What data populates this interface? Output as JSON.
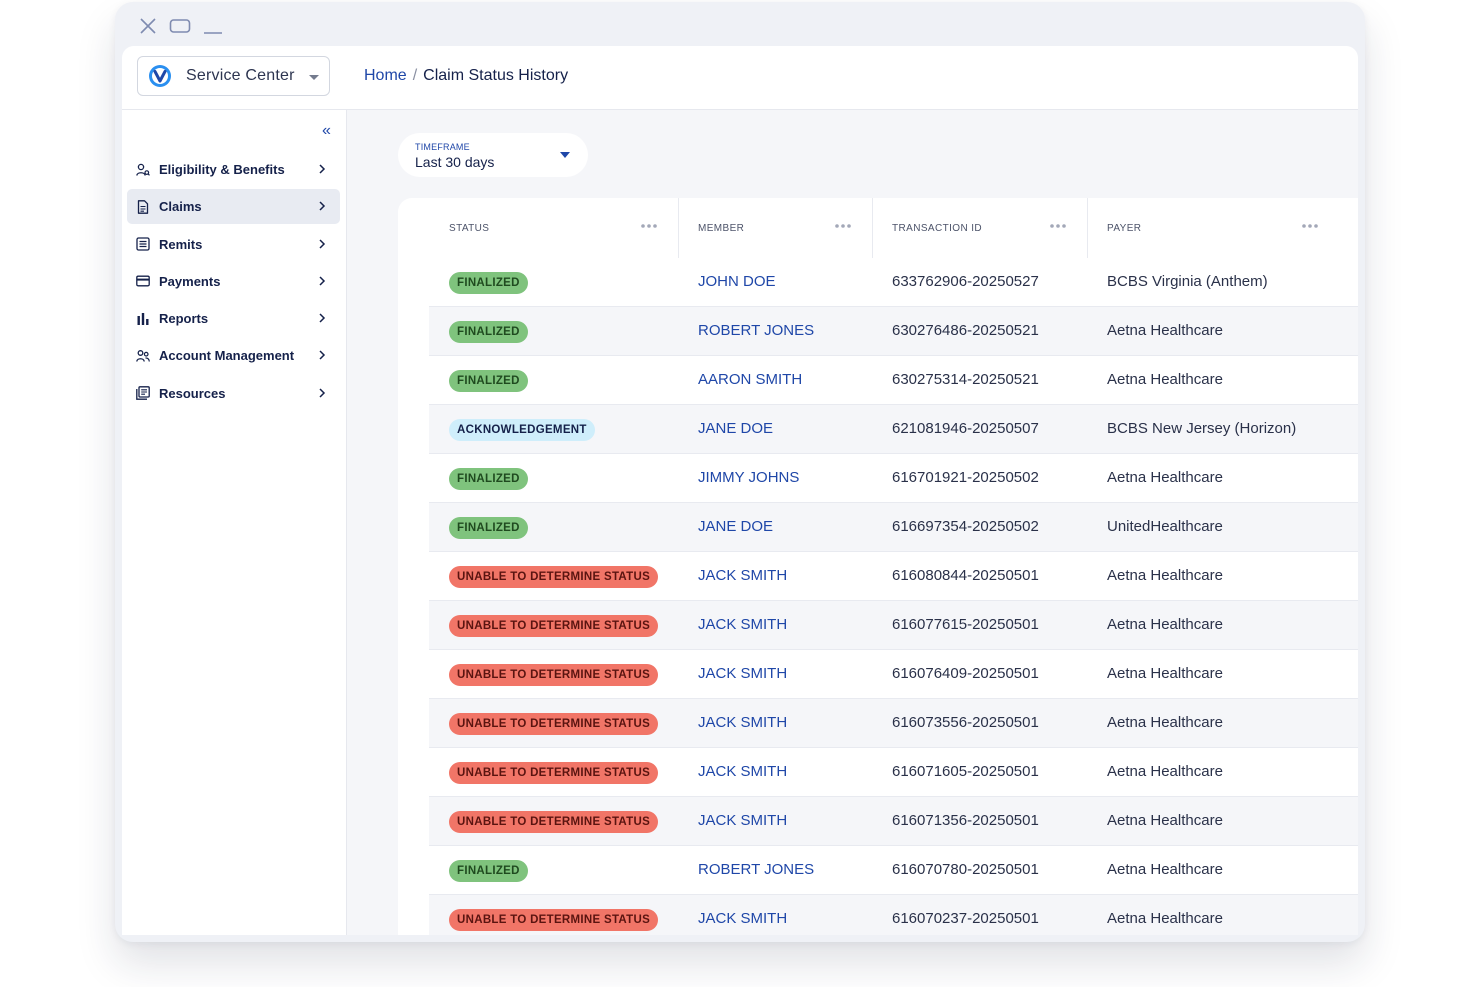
{
  "window": {
    "controls": [
      {
        "name": "close-window-icon"
      },
      {
        "name": "maximize-window-icon"
      },
      {
        "name": "minimize-window-icon"
      }
    ]
  },
  "header": {
    "app_switcher_label": "Service Center",
    "breadcrumb": {
      "home": "Home",
      "separator": "/",
      "current": "Claim Status History"
    }
  },
  "sidebar": {
    "collapse_glyph": "«",
    "items": [
      {
        "label": "Eligibility & Benefits",
        "icon": "eligibility-icon",
        "active": false
      },
      {
        "label": "Claims",
        "icon": "claims-document-icon",
        "active": true
      },
      {
        "label": "Remits",
        "icon": "remits-list-icon",
        "active": false
      },
      {
        "label": "Payments",
        "icon": "credit-card-icon",
        "active": false
      },
      {
        "label": "Reports",
        "icon": "bar-chart-icon",
        "active": false
      },
      {
        "label": "Account Management",
        "icon": "users-icon",
        "active": false
      },
      {
        "label": "Resources",
        "icon": "resources-icon",
        "active": false
      }
    ]
  },
  "filters": {
    "timeframe": {
      "label": "TIMEFRAME",
      "value": "Last 30 days"
    }
  },
  "table": {
    "columns": [
      "STATUS",
      "MEMBER",
      "TRANSACTION ID",
      "PAYER"
    ],
    "rows": [
      {
        "status": "FINALIZED",
        "status_type": "finalized",
        "member": "JOHN DOE",
        "transaction_id": "633762906-20250527",
        "payer": "BCBS Virginia (Anthem)"
      },
      {
        "status": "FINALIZED",
        "status_type": "finalized",
        "member": "ROBERT JONES",
        "transaction_id": "630276486-20250521",
        "payer": "Aetna Healthcare"
      },
      {
        "status": "FINALIZED",
        "status_type": "finalized",
        "member": "AARON SMITH",
        "transaction_id": "630275314-20250521",
        "payer": "Aetna Healthcare"
      },
      {
        "status": "ACKNOWLEDGEMENT",
        "status_type": "ack",
        "member": "JANE DOE",
        "transaction_id": "621081946-20250507",
        "payer": "BCBS New Jersey (Horizon)"
      },
      {
        "status": "FINALIZED",
        "status_type": "finalized",
        "member": "JIMMY JOHNS",
        "transaction_id": "616701921-20250502",
        "payer": "Aetna Healthcare"
      },
      {
        "status": "FINALIZED",
        "status_type": "finalized",
        "member": "JANE DOE",
        "transaction_id": "616697354-20250502",
        "payer": "UnitedHealthcare"
      },
      {
        "status": "UNABLE TO DETERMINE STATUS",
        "status_type": "unable",
        "member": "JACK SMITH",
        "transaction_id": "616080844-20250501",
        "payer": "Aetna Healthcare"
      },
      {
        "status": "UNABLE TO DETERMINE STATUS",
        "status_type": "unable",
        "member": "JACK SMITH",
        "transaction_id": "616077615-20250501",
        "payer": "Aetna Healthcare"
      },
      {
        "status": "UNABLE TO DETERMINE STATUS",
        "status_type": "unable",
        "member": "JACK SMITH",
        "transaction_id": "616076409-20250501",
        "payer": "Aetna Healthcare"
      },
      {
        "status": "UNABLE TO DETERMINE STATUS",
        "status_type": "unable",
        "member": "JACK SMITH",
        "transaction_id": "616073556-20250501",
        "payer": "Aetna Healthcare"
      },
      {
        "status": "UNABLE TO DETERMINE STATUS",
        "status_type": "unable",
        "member": "JACK SMITH",
        "transaction_id": "616071605-20250501",
        "payer": "Aetna Healthcare"
      },
      {
        "status": "UNABLE TO DETERMINE STATUS",
        "status_type": "unable",
        "member": "JACK SMITH",
        "transaction_id": "616071356-20250501",
        "payer": "Aetna Healthcare"
      },
      {
        "status": "FINALIZED",
        "status_type": "finalized",
        "member": "ROBERT JONES",
        "transaction_id": "616070780-20250501",
        "payer": "Aetna Healthcare"
      },
      {
        "status": "UNABLE TO DETERMINE STATUS",
        "status_type": "unable",
        "member": "JACK SMITH",
        "transaction_id": "616070237-20250501",
        "payer": "Aetna Healthcare"
      }
    ]
  },
  "colors": {
    "brand_blue": "#1f47a8",
    "finalized": "#7fc37d",
    "acknowledgement": "#cfeefb",
    "unable": "#f17567",
    "active_nav": "#e8ebf2"
  }
}
